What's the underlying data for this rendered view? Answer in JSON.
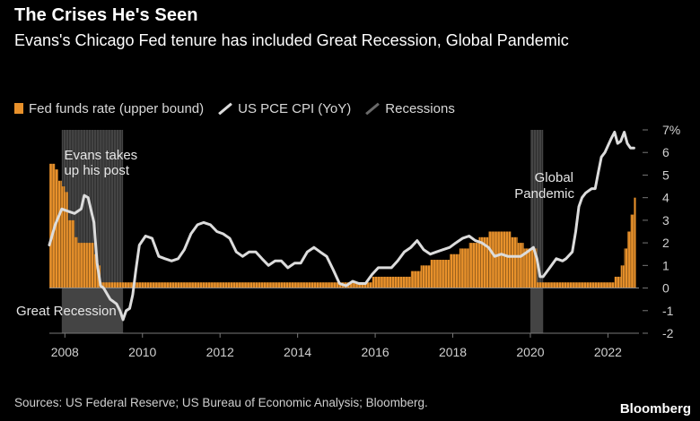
{
  "header": {
    "title": "The Crises He's Seen",
    "subtitle": "Evans's Chicago Fed tenure has included Great Recession, Global Pandemic"
  },
  "legend": {
    "rate": "Fed funds rate (upper bound)",
    "pce": "US PCE CPI (YoY)",
    "recessions": "Recessions"
  },
  "footer": {
    "source": "Sources: US Federal Reserve; US Bureau of Economic Analysis; Bloomberg.",
    "brand": "Bloomberg"
  },
  "chart_data": {
    "type": "bar+line",
    "title": "The Crises He's Seen",
    "xlabel": "",
    "ylabel": "",
    "xlim": [
      2007.6,
      2022.8
    ],
    "ylim": [
      -2,
      7
    ],
    "y_ticks": [
      -2,
      -1,
      0,
      1,
      2,
      3,
      4,
      5,
      6,
      7
    ],
    "y_tick_labels": [
      "-2",
      "-1",
      "0",
      "1",
      "2",
      "3",
      "4",
      "5",
      "6",
      "7%"
    ],
    "x_ticks": [
      2008,
      2010,
      2012,
      2014,
      2016,
      2018,
      2020,
      2022
    ],
    "x_tick_labels": [
      "2008",
      "2010",
      "2012",
      "2014",
      "2016",
      "2018",
      "2020",
      "2022"
    ],
    "recessions": [
      {
        "start": 2007.92,
        "end": 2009.5
      },
      {
        "start": 2020.0,
        "end": 2020.33
      }
    ],
    "annotations": [
      {
        "text": "Evans takes up his post",
        "x": 2007.75,
        "y": 5.9
      },
      {
        "text": "Great Recession",
        "x": 2008.3,
        "y": -0.9
      },
      {
        "text": "Global Pandemic",
        "x": 2020.0,
        "y": 4.1
      }
    ],
    "series": [
      {
        "name": "Fed funds rate (upper bound)",
        "type": "bar",
        "color": "#e8912b",
        "points": [
          [
            2007.6,
            5.5
          ],
          [
            2007.75,
            5.25
          ],
          [
            2007.83,
            4.75
          ],
          [
            2007.92,
            4.5
          ],
          [
            2008.0,
            4.25
          ],
          [
            2008.08,
            3.0
          ],
          [
            2008.17,
            3.0
          ],
          [
            2008.25,
            2.25
          ],
          [
            2008.33,
            2.0
          ],
          [
            2008.42,
            2.0
          ],
          [
            2008.5,
            2.0
          ],
          [
            2008.58,
            2.0
          ],
          [
            2008.67,
            2.0
          ],
          [
            2008.75,
            1.5
          ],
          [
            2008.83,
            1.0
          ],
          [
            2008.92,
            0.25
          ],
          [
            2015.92,
            0.5
          ],
          [
            2016.92,
            0.75
          ],
          [
            2017.17,
            1.0
          ],
          [
            2017.42,
            1.25
          ],
          [
            2017.92,
            1.5
          ],
          [
            2018.17,
            1.75
          ],
          [
            2018.42,
            2.0
          ],
          [
            2018.67,
            2.25
          ],
          [
            2018.92,
            2.5
          ],
          [
            2019.5,
            2.25
          ],
          [
            2019.67,
            2.0
          ],
          [
            2019.83,
            1.75
          ],
          [
            2020.17,
            0.25
          ],
          [
            2022.17,
            0.5
          ],
          [
            2022.33,
            1.0
          ],
          [
            2022.42,
            1.75
          ],
          [
            2022.5,
            2.5
          ],
          [
            2022.58,
            3.25
          ],
          [
            2022.67,
            4.0
          ]
        ]
      },
      {
        "name": "US PCE CPI (YoY)",
        "type": "line",
        "color": "#dcdcdc",
        "points": [
          [
            2007.6,
            1.9
          ],
          [
            2007.75,
            2.8
          ],
          [
            2007.92,
            3.5
          ],
          [
            2008.08,
            3.4
          ],
          [
            2008.25,
            3.3
          ],
          [
            2008.42,
            3.5
          ],
          [
            2008.5,
            4.1
          ],
          [
            2008.6,
            4.0
          ],
          [
            2008.75,
            2.9
          ],
          [
            2008.83,
            1.1
          ],
          [
            2008.92,
            0.1
          ],
          [
            2009.0,
            0.0
          ],
          [
            2009.17,
            -0.5
          ],
          [
            2009.33,
            -0.7
          ],
          [
            2009.42,
            -1.0
          ],
          [
            2009.5,
            -1.4
          ],
          [
            2009.58,
            -1.0
          ],
          [
            2009.67,
            -0.9
          ],
          [
            2009.75,
            -0.3
          ],
          [
            2009.83,
            0.8
          ],
          [
            2009.92,
            1.9
          ],
          [
            2010.08,
            2.3
          ],
          [
            2010.25,
            2.2
          ],
          [
            2010.42,
            1.4
          ],
          [
            2010.58,
            1.3
          ],
          [
            2010.75,
            1.2
          ],
          [
            2010.92,
            1.3
          ],
          [
            2011.08,
            1.7
          ],
          [
            2011.25,
            2.4
          ],
          [
            2011.42,
            2.8
          ],
          [
            2011.58,
            2.9
          ],
          [
            2011.75,
            2.8
          ],
          [
            2011.92,
            2.5
          ],
          [
            2012.08,
            2.4
          ],
          [
            2012.25,
            2.2
          ],
          [
            2012.42,
            1.6
          ],
          [
            2012.58,
            1.4
          ],
          [
            2012.75,
            1.6
          ],
          [
            2012.92,
            1.6
          ],
          [
            2013.08,
            1.3
          ],
          [
            2013.25,
            1.0
          ],
          [
            2013.42,
            1.2
          ],
          [
            2013.58,
            1.2
          ],
          [
            2013.75,
            0.9
          ],
          [
            2013.92,
            1.1
          ],
          [
            2014.08,
            1.1
          ],
          [
            2014.25,
            1.6
          ],
          [
            2014.42,
            1.8
          ],
          [
            2014.58,
            1.6
          ],
          [
            2014.75,
            1.4
          ],
          [
            2014.92,
            0.8
          ],
          [
            2015.08,
            0.2
          ],
          [
            2015.25,
            0.1
          ],
          [
            2015.42,
            0.3
          ],
          [
            2015.58,
            0.2
          ],
          [
            2015.75,
            0.2
          ],
          [
            2015.92,
            0.6
          ],
          [
            2016.08,
            0.9
          ],
          [
            2016.25,
            0.9
          ],
          [
            2016.42,
            0.9
          ],
          [
            2016.58,
            1.2
          ],
          [
            2016.75,
            1.6
          ],
          [
            2016.92,
            1.8
          ],
          [
            2017.08,
            2.1
          ],
          [
            2017.25,
            1.7
          ],
          [
            2017.42,
            1.5
          ],
          [
            2017.58,
            1.6
          ],
          [
            2017.75,
            1.7
          ],
          [
            2017.92,
            1.8
          ],
          [
            2018.08,
            2.0
          ],
          [
            2018.25,
            2.2
          ],
          [
            2018.42,
            2.3
          ],
          [
            2018.58,
            2.1
          ],
          [
            2018.75,
            2.0
          ],
          [
            2018.92,
            1.8
          ],
          [
            2019.08,
            1.4
          ],
          [
            2019.25,
            1.5
          ],
          [
            2019.42,
            1.4
          ],
          [
            2019.58,
            1.4
          ],
          [
            2019.75,
            1.4
          ],
          [
            2019.92,
            1.6
          ],
          [
            2020.08,
            1.8
          ],
          [
            2020.17,
            1.3
          ],
          [
            2020.25,
            0.5
          ],
          [
            2020.33,
            0.5
          ],
          [
            2020.5,
            0.9
          ],
          [
            2020.67,
            1.3
          ],
          [
            2020.83,
            1.2
          ],
          [
            2020.92,
            1.3
          ],
          [
            2021.08,
            1.6
          ],
          [
            2021.17,
            2.5
          ],
          [
            2021.25,
            3.6
          ],
          [
            2021.33,
            4.0
          ],
          [
            2021.42,
            4.2
          ],
          [
            2021.5,
            4.3
          ],
          [
            2021.58,
            4.4
          ],
          [
            2021.67,
            4.4
          ],
          [
            2021.75,
            5.1
          ],
          [
            2021.83,
            5.8
          ],
          [
            2021.92,
            6.0
          ],
          [
            2022.0,
            6.3
          ],
          [
            2022.08,
            6.6
          ],
          [
            2022.17,
            6.9
          ],
          [
            2022.25,
            6.4
          ],
          [
            2022.33,
            6.5
          ],
          [
            2022.42,
            6.9
          ],
          [
            2022.5,
            6.4
          ],
          [
            2022.58,
            6.2
          ],
          [
            2022.67,
            6.2
          ]
        ]
      }
    ]
  }
}
